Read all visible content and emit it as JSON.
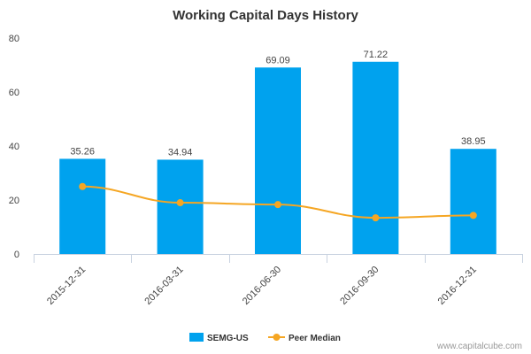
{
  "colors": {
    "bar": "#00a2ee",
    "line": "#f5a623",
    "axis": "#c8d2e0",
    "text": "#444444"
  },
  "credit": "www.capitalcube.com",
  "chart_data": {
    "type": "bar",
    "title": "Working Capital Days History",
    "xlabel": "",
    "ylabel": "",
    "categories": [
      "2015-12-31",
      "2016-03-31",
      "2016-06-30",
      "2016-09-30",
      "2016-12-31"
    ],
    "ylim": [
      0,
      80
    ],
    "yticks": [
      0,
      20,
      40,
      60,
      80
    ],
    "grid": false,
    "legend_position": "bottom",
    "series": [
      {
        "name": "SEMG-US",
        "type": "bar",
        "values": [
          35.26,
          34.94,
          69.09,
          71.22,
          38.95
        ],
        "labels": [
          "35.26",
          "34.94",
          "69.09",
          "71.22",
          "38.95"
        ]
      },
      {
        "name": "Peer Median",
        "type": "line",
        "values": [
          25.0,
          19.0,
          18.3,
          13.4,
          14.3
        ]
      }
    ]
  }
}
